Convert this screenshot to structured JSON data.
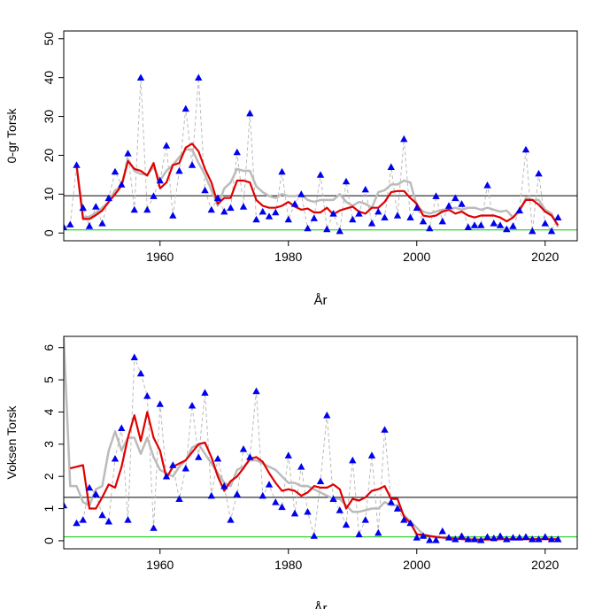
{
  "chart_data": [
    {
      "type": "line",
      "ylabel": "0-gr Torsk",
      "xlabel": "År",
      "xlim": [
        1945,
        2025
      ],
      "ylim": [
        -2,
        52
      ],
      "x_ticks": [
        1960,
        1980,
        2000,
        2020
      ],
      "y_ticks": [
        0,
        10,
        20,
        30,
        40,
        50
      ],
      "hlines": [
        {
          "name": "reference-level",
          "value": 9.6,
          "color": "#000000"
        },
        {
          "name": "baseline-level",
          "value": 0.8,
          "color": "#00cc00"
        }
      ],
      "years": [
        1945,
        1946,
        1947,
        1948,
        1949,
        1950,
        1951,
        1952,
        1953,
        1954,
        1955,
        1956,
        1957,
        1958,
        1959,
        1960,
        1961,
        1962,
        1963,
        1964,
        1965,
        1966,
        1967,
        1968,
        1969,
        1970,
        1971,
        1972,
        1973,
        1974,
        1975,
        1976,
        1977,
        1978,
        1979,
        1980,
        1981,
        1982,
        1983,
        1984,
        1985,
        1986,
        1987,
        1988,
        1989,
        1990,
        1991,
        1992,
        1993,
        1994,
        1995,
        1996,
        1997,
        1998,
        1999,
        2000,
        2001,
        2002,
        2003,
        2004,
        2005,
        2006,
        2007,
        2008,
        2009,
        2010,
        2011,
        2012,
        2013,
        2014,
        2015,
        2016,
        2017,
        2018,
        2019,
        2020,
        2021,
        2022
      ],
      "series": [
        {
          "name": "observed",
          "color": "#0000ee",
          "line_color": "#bbbbbb",
          "values": [
            1.5,
            2.2,
            17.5,
            6.5,
            1.8,
            6.8,
            2.5,
            9.0,
            15.8,
            12.5,
            20.5,
            6.0,
            40.0,
            6.0,
            9.5,
            13.5,
            22.5,
            4.5,
            16.0,
            32.0,
            17.5,
            40.0,
            11.0,
            6.0,
            9.0,
            5.5,
            6.5,
            20.8,
            6.8,
            30.8,
            3.5,
            5.5,
            4.3,
            5.3,
            15.8,
            3.5,
            7.5,
            10.0,
            1.2,
            3.8,
            15.0,
            1.0,
            5.0,
            0.5,
            13.3,
            3.5,
            5.0,
            11.2,
            2.5,
            5.5,
            4.0,
            17.0,
            4.5,
            24.2,
            4.0,
            6.5,
            3.0,
            1.2,
            9.5,
            3.0,
            7.0,
            9.0,
            7.5,
            1.5,
            2.0,
            2.0,
            12.3,
            2.5,
            2.0,
            1.0,
            1.8,
            5.8,
            21.5,
            0.5,
            15.3,
            2.5,
            0.5,
            4.0
          ]
        },
        {
          "name": "moving-average",
          "color": "#bbbbbb",
          "values": [
            null,
            null,
            17.0,
            4.0,
            4.2,
            5.2,
            6.5,
            8.0,
            11.0,
            12.0,
            19.0,
            16.0,
            15.2,
            15.0,
            17.0,
            13.5,
            16.0,
            17.5,
            19.5,
            21.5,
            21.5,
            18.0,
            15.0,
            11.0,
            7.0,
            11.5,
            13.0,
            16.5,
            16.0,
            16.0,
            12.0,
            10.5,
            9.5,
            9.0,
            10.0,
            9.5,
            9.5,
            9.8,
            8.5,
            8.0,
            8.5,
            8.5,
            8.5,
            10.0,
            8.0,
            7.0,
            8.0,
            7.5,
            6.5,
            10.5,
            11.0,
            12.5,
            12.5,
            13.5,
            13.0,
            7.0,
            5.5,
            5.0,
            5.5,
            6.0,
            6.0,
            6.5,
            6.0,
            6.5,
            6.5,
            6.0,
            6.5,
            6.0,
            5.5,
            5.8,
            4.0,
            5.5,
            9.0,
            8.5,
            8.5,
            6.0,
            5.0,
            1.5
          ]
        },
        {
          "name": "trend",
          "color": "#e00000",
          "values": [
            null,
            null,
            17.5,
            3.6,
            3.6,
            4.6,
            5.8,
            8.0,
            10.0,
            12.2,
            18.5,
            16.5,
            16.0,
            14.8,
            18.0,
            11.5,
            13.0,
            17.5,
            18.0,
            22.0,
            23.0,
            21.0,
            16.5,
            13.0,
            7.5,
            9.0,
            9.0,
            13.5,
            13.5,
            13.0,
            8.5,
            7.0,
            6.5,
            6.5,
            7.0,
            8.0,
            6.8,
            6.0,
            6.3,
            5.3,
            5.3,
            6.5,
            4.8,
            5.8,
            6.3,
            6.8,
            5.5,
            5.0,
            6.5,
            6.5,
            8.0,
            10.5,
            10.8,
            10.8,
            9.0,
            7.5,
            4.5,
            4.2,
            4.5,
            5.5,
            6.0,
            5.0,
            5.5,
            4.5,
            4.0,
            4.5,
            4.5,
            4.5,
            4.0,
            3.0,
            4.0,
            6.0,
            8.5,
            8.5,
            7.3,
            5.5,
            4.5,
            2.0
          ]
        }
      ]
    },
    {
      "type": "line",
      "ylabel": "Voksen Torsk",
      "xlabel": "År",
      "xlim": [
        1945,
        2025
      ],
      "ylim": [
        -0.25,
        6.35
      ],
      "x_ticks": [
        1960,
        1980,
        2000,
        2020
      ],
      "y_ticks": [
        0,
        1,
        2,
        3,
        4,
        5,
        6
      ],
      "hlines": [
        {
          "name": "reference-level",
          "value": 1.35,
          "color": "#000000"
        },
        {
          "name": "baseline-level",
          "value": 0.12,
          "color": "#00cc00"
        }
      ],
      "years": [
        1945,
        1946,
        1947,
        1948,
        1949,
        1950,
        1951,
        1952,
        1953,
        1954,
        1955,
        1956,
        1957,
        1958,
        1959,
        1960,
        1961,
        1962,
        1963,
        1964,
        1965,
        1966,
        1967,
        1968,
        1969,
        1970,
        1971,
        1972,
        1973,
        1974,
        1975,
        1976,
        1977,
        1978,
        1979,
        1980,
        1981,
        1982,
        1983,
        1984,
        1985,
        1986,
        1987,
        1988,
        1989,
        1990,
        1991,
        1992,
        1993,
        1994,
        1995,
        1996,
        1997,
        1998,
        1999,
        2000,
        2001,
        2002,
        2003,
        2004,
        2005,
        2006,
        2007,
        2008,
        2009,
        2010,
        2011,
        2012,
        2013,
        2014,
        2015,
        2016,
        2017,
        2018,
        2019,
        2020,
        2021,
        2022
      ],
      "series": [
        {
          "name": "observed",
          "color": "#0000ee",
          "line_color": "#bbbbbb",
          "values": [
            1.1,
            null,
            0.55,
            0.65,
            1.65,
            1.45,
            0.8,
            0.6,
            2.55,
            3.5,
            0.65,
            5.7,
            5.2,
            4.5,
            0.4,
            4.25,
            2.0,
            2.35,
            1.3,
            2.25,
            4.2,
            2.6,
            4.6,
            1.4,
            2.55,
            1.7,
            0.65,
            1.45,
            2.85,
            2.6,
            4.65,
            1.4,
            1.75,
            1.2,
            1.05,
            2.65,
            0.85,
            2.3,
            0.9,
            0.15,
            1.85,
            3.9,
            1.3,
            0.95,
            0.5,
            2.5,
            0.2,
            0.65,
            2.65,
            0.25,
            3.45,
            1.2,
            1.0,
            0.65,
            0.55,
            0.1,
            0.15,
            0.02,
            0.02,
            0.3,
            0.1,
            0.05,
            0.15,
            0.05,
            0.05,
            0.02,
            0.12,
            0.08,
            0.15,
            0.05,
            0.1,
            0.1,
            0.12,
            0.05,
            0.05,
            0.12,
            0.05,
            0.05
          ]
        },
        {
          "name": "moving-average",
          "color": "#bbbbbb",
          "values": [
            6.3,
            1.7,
            1.7,
            1.2,
            1.1,
            1.6,
            1.7,
            2.8,
            3.4,
            2.8,
            3.2,
            3.2,
            2.7,
            3.2,
            2.6,
            2.2,
            2.1,
            2.0,
            2.3,
            2.5,
            2.9,
            3.0,
            2.7,
            2.4,
            2.1,
            1.8,
            1.7,
            2.2,
            2.3,
            2.5,
            2.5,
            2.4,
            2.3,
            2.2,
            2.0,
            1.8,
            1.8,
            1.7,
            1.7,
            1.6,
            1.5,
            1.4,
            1.3,
            1.3,
            1.1,
            0.9,
            0.9,
            0.95,
            1.0,
            1.0,
            1.2,
            1.1,
            1.1,
            0.8,
            0.6,
            0.4,
            0.2,
            0.15,
            0.1,
            0.1,
            0.08,
            0.06,
            0.06,
            0.06,
            0.05,
            0.05,
            0.05,
            0.05,
            0.05,
            0.05,
            0.05,
            0.05,
            0.05,
            0.05,
            0.05,
            0.05,
            0.05,
            0.05
          ]
        },
        {
          "name": "trend",
          "color": "#e00000",
          "values": [
            null,
            2.25,
            2.3,
            2.35,
            1.0,
            1.0,
            1.35,
            1.75,
            1.65,
            2.3,
            3.2,
            3.9,
            3.1,
            4.0,
            3.2,
            2.8,
            1.95,
            2.3,
            2.4,
            2.5,
            2.75,
            3.0,
            3.05,
            2.6,
            2.0,
            1.55,
            1.85,
            2.0,
            2.25,
            2.55,
            2.6,
            2.45,
            2.1,
            1.8,
            1.55,
            1.6,
            1.55,
            1.4,
            1.5,
            1.7,
            1.65,
            1.65,
            1.75,
            1.6,
            1.0,
            1.3,
            1.25,
            1.35,
            1.55,
            1.6,
            1.7,
            1.3,
            1.3,
            0.75,
            0.55,
            0.2,
            0.18,
            0.15,
            0.12,
            0.1,
            0.08,
            0.06,
            0.05,
            0.04,
            0.03,
            0.03,
            0.04,
            0.04,
            0.05,
            0.05,
            0.05,
            0.05,
            0.05,
            0.05,
            0.05,
            0.05,
            0.05,
            0.05
          ]
        }
      ]
    }
  ]
}
